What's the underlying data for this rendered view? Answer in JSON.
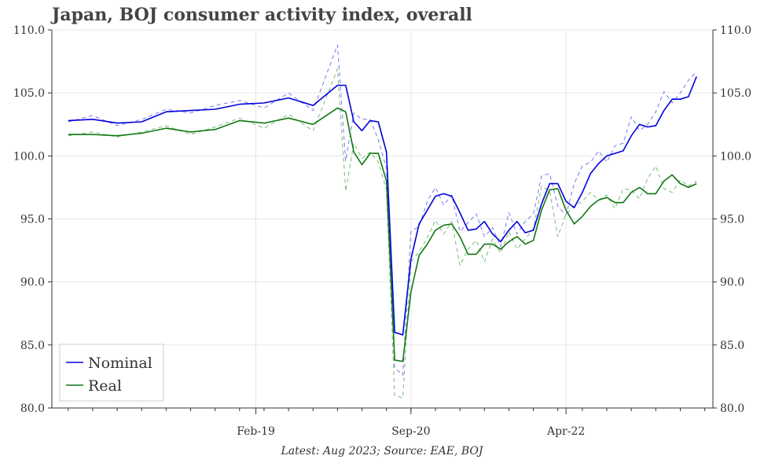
{
  "title": "Japan, BOJ consumer activity index, overall",
  "caption": "Latest: Aug 2023; Source: EAE, BOJ",
  "colors": {
    "nominal": "#0000dd",
    "nominal_dashed": "#7777ee",
    "real": "#117711",
    "real_dashed": "#77bb77",
    "grid": "#e6e6e6",
    "axis": "#333333"
  },
  "chart_data": {
    "type": "line",
    "title": "Japan, BOJ consumer activity index, overall",
    "x_label": "",
    "y_label": "",
    "ylim": [
      80.0,
      110.0
    ],
    "yticks": [
      "80.0",
      "85.0",
      "90.0",
      "95.0",
      "100.0",
      "105.0",
      "110.0"
    ],
    "ytick_values": [
      80,
      85,
      90,
      95,
      100,
      105,
      110
    ],
    "xticks": [
      {
        "label": "Feb-19",
        "date": "2019-02"
      },
      {
        "label": "Sep-20",
        "date": "2020-09"
      },
      {
        "label": "Apr-22",
        "date": "2022-04"
      }
    ],
    "x_start": "2017-01",
    "x_end": "2023-10",
    "grid": true,
    "legend_position": "lower-left",
    "series": [
      {
        "name": "Nominal",
        "style": "solid",
        "x": [
          "2017-03",
          "2017-06",
          "2017-09",
          "2017-12",
          "2018-03",
          "2018-06",
          "2018-09",
          "2018-12",
          "2019-03",
          "2019-06",
          "2019-09",
          "2019-12",
          "2020-01",
          "2020-02",
          "2020-03",
          "2020-04",
          "2020-05",
          "2020-06",
          "2020-07",
          "2020-08",
          "2020-09",
          "2020-10",
          "2020-11",
          "2020-12",
          "2021-01",
          "2021-02",
          "2021-03",
          "2021-04",
          "2021-05",
          "2021-06",
          "2021-07",
          "2021-08",
          "2021-09",
          "2021-10",
          "2021-11",
          "2021-12",
          "2022-01",
          "2022-02",
          "2022-03",
          "2022-04",
          "2022-05",
          "2022-06",
          "2022-07",
          "2022-08",
          "2022-09",
          "2022-10",
          "2022-11",
          "2022-12",
          "2023-01",
          "2023-02",
          "2023-03",
          "2023-04",
          "2023-05",
          "2023-06",
          "2023-07",
          "2023-08"
        ],
        "y": [
          102.8,
          102.9,
          102.6,
          102.7,
          103.5,
          103.6,
          103.7,
          104.1,
          104.2,
          104.6,
          104.0,
          105.6,
          105.6,
          102.7,
          102.0,
          102.8,
          102.7,
          100.3,
          86.0,
          85.8,
          91.8,
          94.6,
          95.7,
          96.8,
          97.0,
          96.8,
          95.5,
          94.1,
          94.2,
          94.8,
          93.8,
          93.2,
          94.1,
          94.8,
          93.9,
          94.1,
          96.2,
          97.8,
          97.8,
          96.4,
          95.9,
          97.1,
          98.6,
          99.4,
          100.0,
          100.2,
          100.4,
          101.6,
          102.5,
          102.3,
          102.4,
          103.6,
          104.5,
          104.5,
          104.7,
          106.3
        ]
      },
      {
        "name": "Real",
        "style": "solid",
        "x": [
          "2017-03",
          "2017-06",
          "2017-09",
          "2017-12",
          "2018-03",
          "2018-06",
          "2018-09",
          "2018-12",
          "2019-03",
          "2019-06",
          "2019-09",
          "2019-12",
          "2020-01",
          "2020-02",
          "2020-03",
          "2020-04",
          "2020-05",
          "2020-06",
          "2020-07",
          "2020-08",
          "2020-09",
          "2020-10",
          "2020-11",
          "2020-12",
          "2021-01",
          "2021-02",
          "2021-03",
          "2021-04",
          "2021-05",
          "2021-06",
          "2021-07",
          "2021-08",
          "2021-09",
          "2021-10",
          "2021-11",
          "2021-12",
          "2022-01",
          "2022-02",
          "2022-03",
          "2022-04",
          "2022-05",
          "2022-06",
          "2022-07",
          "2022-08",
          "2022-09",
          "2022-10",
          "2022-11",
          "2022-12",
          "2023-01",
          "2023-02",
          "2023-03",
          "2023-04",
          "2023-05",
          "2023-06",
          "2023-07",
          "2023-08"
        ],
        "y": [
          101.7,
          101.7,
          101.6,
          101.8,
          102.2,
          101.9,
          102.1,
          102.8,
          102.6,
          103.0,
          102.5,
          103.8,
          103.5,
          100.3,
          99.3,
          100.2,
          100.2,
          98.0,
          83.8,
          83.7,
          89.2,
          92.1,
          93.0,
          94.1,
          94.5,
          94.6,
          93.6,
          92.2,
          92.2,
          93.0,
          93.0,
          92.6,
          93.2,
          93.6,
          93.0,
          93.3,
          95.7,
          97.3,
          97.4,
          95.7,
          94.6,
          95.2,
          96.0,
          96.5,
          96.7,
          96.3,
          96.3,
          97.1,
          97.5,
          97.0,
          97.0,
          98.0,
          98.5,
          97.8,
          97.5,
          97.8
        ]
      },
      {
        "name": "",
        "style": "dashed",
        "x": [
          "2017-03",
          "2017-06",
          "2017-09",
          "2017-12",
          "2018-03",
          "2018-06",
          "2018-09",
          "2018-12",
          "2019-03",
          "2019-06",
          "2019-09",
          "2019-12",
          "2020-01",
          "2020-02",
          "2020-03",
          "2020-04",
          "2020-05",
          "2020-06",
          "2020-07",
          "2020-08",
          "2020-09",
          "2020-10",
          "2020-11",
          "2020-12",
          "2021-01",
          "2021-02",
          "2021-03",
          "2021-04",
          "2021-05",
          "2021-06",
          "2021-07",
          "2021-08",
          "2021-09",
          "2021-10",
          "2021-11",
          "2021-12",
          "2022-01",
          "2022-02",
          "2022-03",
          "2022-04",
          "2022-05",
          "2022-06",
          "2022-07",
          "2022-08",
          "2022-09",
          "2022-10",
          "2022-11",
          "2022-12",
          "2023-01",
          "2023-02",
          "2023-03",
          "2023-04",
          "2023-05",
          "2023-06",
          "2023-07",
          "2023-08"
        ],
        "y": [
          102.7,
          103.2,
          102.4,
          102.9,
          103.7,
          103.4,
          104.0,
          104.4,
          103.8,
          105.0,
          103.6,
          108.8,
          99.6,
          103.4,
          102.9,
          102.9,
          101.3,
          99.0,
          83.2,
          82.6,
          94.0,
          94.4,
          96.4,
          97.5,
          96.1,
          96.9,
          94.0,
          94.7,
          95.4,
          93.6,
          94.3,
          92.8,
          95.5,
          93.8,
          94.8,
          95.4,
          98.4,
          98.6,
          96.0,
          95.3,
          97.8,
          99.2,
          99.5,
          100.4,
          99.5,
          100.8,
          101.0,
          103.1,
          102.0,
          102.5,
          103.5,
          105.1,
          104.2,
          105.0,
          106.0,
          106.7
        ]
      },
      {
        "name": "",
        "style": "dashed",
        "x": [
          "2017-03",
          "2017-06",
          "2017-09",
          "2017-12",
          "2018-03",
          "2018-06",
          "2018-09",
          "2018-12",
          "2019-03",
          "2019-06",
          "2019-09",
          "2019-12",
          "2020-01",
          "2020-02",
          "2020-03",
          "2020-04",
          "2020-05",
          "2020-06",
          "2020-07",
          "2020-08",
          "2020-09",
          "2020-10",
          "2020-11",
          "2020-12",
          "2021-01",
          "2021-02",
          "2021-03",
          "2021-04",
          "2021-05",
          "2021-06",
          "2021-07",
          "2021-08",
          "2021-09",
          "2021-10",
          "2021-11",
          "2021-12",
          "2022-01",
          "2022-02",
          "2022-03",
          "2022-04",
          "2022-05",
          "2022-06",
          "2022-07",
          "2022-08",
          "2022-09",
          "2022-10",
          "2022-11",
          "2022-12",
          "2023-01",
          "2023-02",
          "2023-03",
          "2023-04",
          "2023-05",
          "2023-06",
          "2023-07",
          "2023-08"
        ],
        "y": [
          101.6,
          101.9,
          101.5,
          101.9,
          102.4,
          101.7,
          102.3,
          103.0,
          102.2,
          103.3,
          102.0,
          106.9,
          97.2,
          101.0,
          99.8,
          100.3,
          99.5,
          97.3,
          81.0,
          80.8,
          91.6,
          92.4,
          93.5,
          94.9,
          93.8,
          94.8,
          91.3,
          92.6,
          93.3,
          91.6,
          93.4,
          92.3,
          94.0,
          92.6,
          93.4,
          94.2,
          97.6,
          97.2,
          93.6,
          95.4,
          96.0,
          96.4,
          97.1,
          96.5,
          96.9,
          95.8,
          97.4,
          97.3,
          96.6,
          98.2,
          99.2,
          97.4,
          97.1,
          98.1,
          97.6,
          98.0
        ]
      }
    ],
    "legend": [
      {
        "label": "Nominal",
        "series": 0
      },
      {
        "label": "Real",
        "series": 1
      }
    ]
  }
}
